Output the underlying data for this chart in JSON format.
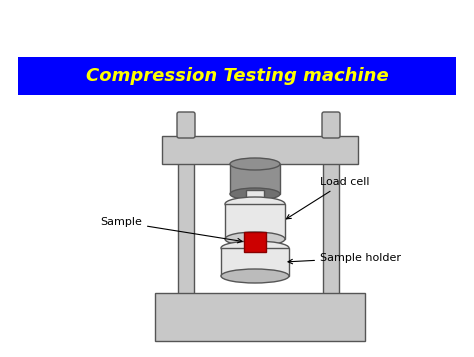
{
  "title": "Compression Testing machine",
  "title_color": "#FFFF00",
  "title_bg": "#0000FF",
  "bg_color": "#FFFFFF",
  "machine_color": "#C8C8C8",
  "machine_edge": "#555555",
  "dark_gray": "#909090",
  "light_gray": "#E8E8E8",
  "sample_color": "#CC0000",
  "sample_edge": "#880000",
  "label_load_cell": "Load cell",
  "label_sample": "Sample",
  "label_sample_holder": "Sample holder",
  "lw": 1.0
}
